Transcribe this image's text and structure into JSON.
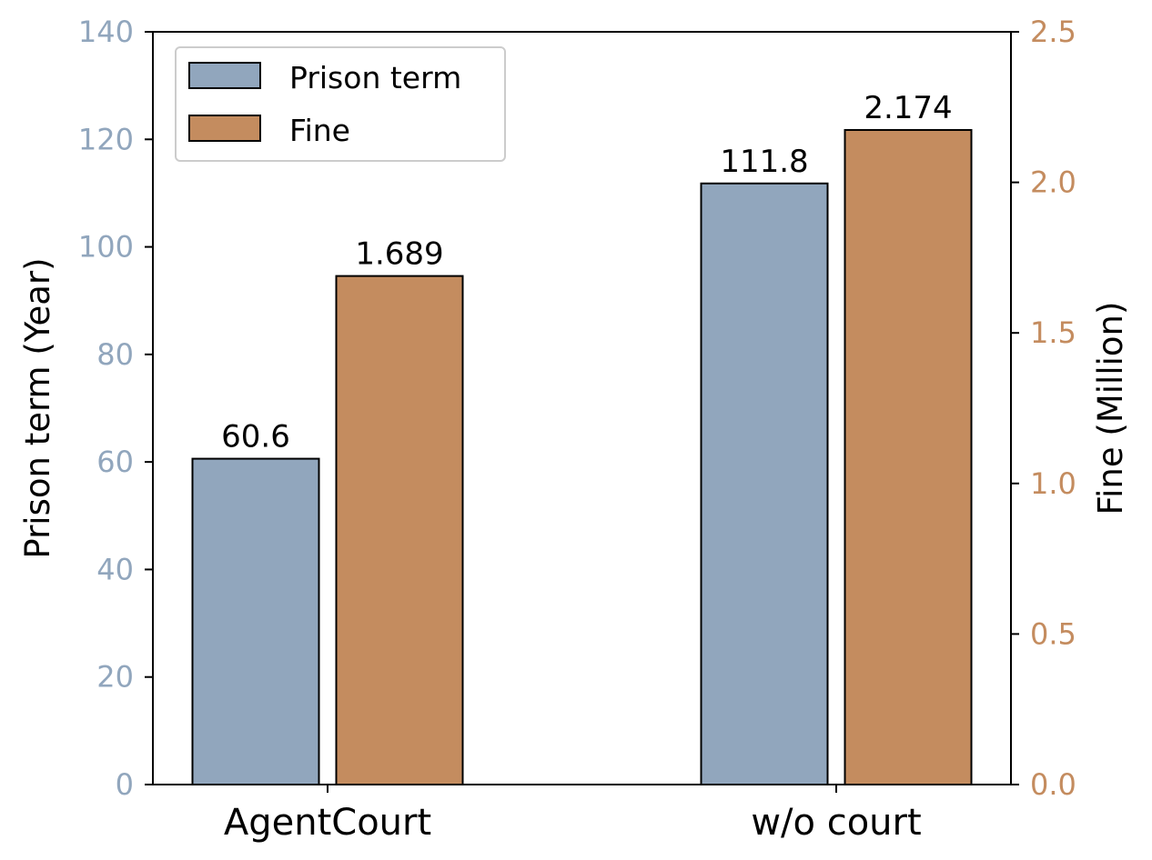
{
  "chart_data": {
    "type": "bar",
    "categories": [
      "AgentCourt",
      "w/o court"
    ],
    "series": [
      {
        "name": "Prison term",
        "axis": "left",
        "values": [
          60.6,
          111.8
        ],
        "data_labels": [
          "60.6",
          "111.8"
        ],
        "color": "#91a6bd"
      },
      {
        "name": "Fine",
        "axis": "right",
        "values": [
          1.689,
          2.174
        ],
        "data_labels": [
          "1.689",
          "2.174"
        ],
        "color": "#c48c5f"
      }
    ],
    "ylabel_left": "Prison term (Year)",
    "ylabel_right": "Fine (Million)",
    "ylim_left": [
      0,
      140
    ],
    "ylim_right": [
      0,
      2.5
    ],
    "yticks_left": [
      "0",
      "20",
      "40",
      "60",
      "80",
      "100",
      "120",
      "140"
    ],
    "yticks_right": [
      "0.0",
      "0.5",
      "1.0",
      "1.5",
      "2.0",
      "2.5"
    ],
    "left_tick_color": "#91a6bd",
    "right_tick_color": "#c48c5f",
    "grid": false,
    "legend_position": "top-left"
  }
}
